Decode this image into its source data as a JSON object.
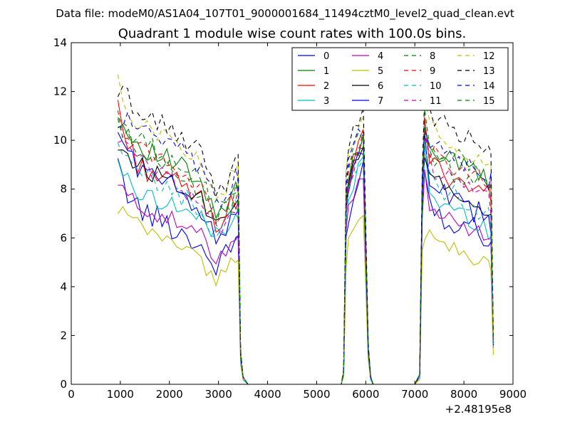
{
  "chart_data": {
    "type": "line",
    "suptitle": "Data file: modeM0/AS1A04_107T01_9000001684_11494cztM0_level2_quad_clean.evt",
    "title": "Quadrant 1 module wise count rates with 100.0s bins.",
    "xlabel": "",
    "ylabel": "",
    "x_offset_label": "+2.48195e8",
    "xlim": [
      0,
      9000
    ],
    "ylim": [
      0,
      14
    ],
    "xticks": [
      0,
      1000,
      2000,
      3000,
      4000,
      5000,
      6000,
      7000,
      8000,
      9000
    ],
    "yticks": [
      0,
      2,
      4,
      6,
      8,
      10,
      12,
      14
    ],
    "x": [
      950,
      1050,
      1150,
      1250,
      1350,
      1450,
      1550,
      1650,
      1750,
      1850,
      1950,
      2050,
      2150,
      2250,
      2350,
      2450,
      2550,
      2650,
      2750,
      2850,
      2950,
      3050,
      3150,
      3250,
      3350,
      3400,
      3450,
      3500,
      3600,
      3700,
      5500,
      5550,
      5600,
      5650,
      5750,
      5850,
      5950,
      6050,
      6100,
      6150,
      7000,
      7100,
      7150,
      7200,
      7300,
      7400,
      7500,
      7600,
      7700,
      7800,
      7900,
      8000,
      8100,
      8200,
      8300,
      8400,
      8500,
      8550,
      8600
    ],
    "series": [
      {
        "name": "0",
        "style": "solid",
        "color": "#0000ff",
        "base": [
          8.8,
          8.3,
          7.9,
          7.6,
          7.3,
          7.1,
          7.0,
          6.9,
          6.8,
          6.7,
          6.6,
          6.5,
          6.3,
          6.2,
          6.1,
          6.0,
          5.8,
          5.6,
          5.3,
          5.0,
          4.9,
          5.0,
          5.3,
          5.6,
          6.0,
          6.0,
          1.0,
          0.2,
          0,
          0,
          0,
          0.4,
          5.8,
          6.5,
          7.6,
          8.3,
          8.8,
          1.2,
          0.2,
          0,
          0,
          0.3,
          6.8,
          9.2,
          7.6,
          7.2,
          7.0,
          6.9,
          6.8,
          6.7,
          6.6,
          6.6,
          6.5,
          6.4,
          6.3,
          6.2,
          6.0,
          5.9,
          1.5
        ],
        "wiggle": 0.55
      },
      {
        "name": "1",
        "style": "solid",
        "color": "#008000",
        "base": [
          10.9,
          10.6,
          10.3,
          10.1,
          9.9,
          9.8,
          9.6,
          9.5,
          9.4,
          9.3,
          9.2,
          9.1,
          9.0,
          8.9,
          8.7,
          8.5,
          8.3,
          8.0,
          7.7,
          7.3,
          7.0,
          7.0,
          7.2,
          7.5,
          7.9,
          8.0,
          1.3,
          0.3,
          0,
          0,
          0,
          0.5,
          7.6,
          8.6,
          9.3,
          9.8,
          10.2,
          1.5,
          0.3,
          0,
          0,
          0.4,
          7.9,
          10.8,
          9.9,
          9.6,
          9.4,
          9.3,
          9.2,
          9.1,
          9.0,
          8.9,
          8.8,
          8.7,
          8.6,
          8.5,
          8.3,
          8.2,
          1.8
        ],
        "wiggle": 0.45
      },
      {
        "name": "2",
        "style": "solid",
        "color": "#ff0000",
        "base": [
          11.6,
          10.5,
          9.8,
          9.4,
          9.1,
          8.9,
          8.8,
          8.7,
          8.6,
          8.5,
          8.4,
          8.3,
          8.2,
          8.1,
          8.0,
          7.9,
          7.7,
          7.5,
          7.2,
          6.9,
          6.7,
          6.8,
          7.0,
          7.3,
          7.6,
          7.7,
          1.2,
          0.3,
          0,
          0,
          0,
          0.5,
          7.4,
          8.4,
          9.0,
          9.6,
          10.0,
          1.4,
          0.3,
          0,
          0,
          0.4,
          7.6,
          10.5,
          9.2,
          9.0,
          8.8,
          8.7,
          8.6,
          8.5,
          8.4,
          8.3,
          8.2,
          8.1,
          8.0,
          7.9,
          7.7,
          7.6,
          1.7
        ],
        "wiggle": 0.5
      },
      {
        "name": "3",
        "style": "solid",
        "color": "#00bfbf",
        "base": [
          9.3,
          8.7,
          8.3,
          8.0,
          7.9,
          7.8,
          7.7,
          7.7,
          7.6,
          7.5,
          7.5,
          7.4,
          7.3,
          7.2,
          7.1,
          7.0,
          6.9,
          6.7,
          6.5,
          6.3,
          6.2,
          6.3,
          6.5,
          6.7,
          7.0,
          7.0,
          1.1,
          0.2,
          0,
          0,
          0,
          0.4,
          6.8,
          7.6,
          8.2,
          8.8,
          9.1,
          1.3,
          0.2,
          0,
          0,
          0.3,
          7.2,
          9.8,
          7.8,
          7.6,
          7.4,
          7.3,
          7.2,
          7.1,
          7.0,
          6.9,
          6.8,
          6.7,
          6.6,
          6.5,
          6.3,
          6.2,
          1.6
        ],
        "wiggle": 0.4
      },
      {
        "name": "4",
        "style": "solid",
        "color": "#bf00bf",
        "base": [
          8.2,
          7.9,
          7.7,
          7.5,
          7.4,
          7.3,
          7.2,
          7.1,
          7.0,
          6.9,
          6.8,
          6.7,
          6.6,
          6.5,
          6.4,
          6.3,
          6.2,
          6.0,
          5.8,
          5.5,
          5.3,
          5.4,
          5.6,
          5.9,
          6.2,
          6.3,
          1.0,
          0.2,
          0,
          0,
          0,
          0.4,
          6.2,
          7.0,
          7.8,
          8.4,
          8.7,
          1.2,
          0.2,
          0,
          0,
          0.3,
          6.9,
          8.6,
          7.4,
          7.2,
          7.0,
          6.9,
          6.8,
          6.7,
          6.6,
          6.5,
          6.4,
          6.3,
          6.2,
          6.1,
          5.9,
          5.8,
          1.5
        ],
        "wiggle": 0.4
      },
      {
        "name": "5",
        "style": "solid",
        "color": "#bfbf00",
        "base": [
          6.9,
          7.1,
          6.9,
          6.7,
          6.5,
          6.4,
          6.3,
          6.2,
          6.1,
          6.0,
          5.9,
          5.9,
          5.8,
          5.7,
          5.6,
          5.5,
          5.3,
          5.0,
          4.7,
          4.4,
          4.3,
          4.4,
          4.6,
          4.9,
          5.3,
          5.4,
          0.8,
          0.2,
          0,
          0,
          0,
          0.3,
          4.9,
          5.9,
          6.2,
          6.6,
          6.9,
          1.0,
          0.2,
          0,
          0,
          0.2,
          5.8,
          6.2,
          6.1,
          5.9,
          5.8,
          5.7,
          5.6,
          5.6,
          5.5,
          5.4,
          5.3,
          5.2,
          5.1,
          5.0,
          4.8,
          4.7,
          1.2
        ],
        "wiggle": 0.35
      },
      {
        "name": "6",
        "style": "solid",
        "color": "#000000",
        "base": [
          9.9,
          9.6,
          9.4,
          9.2,
          9.0,
          8.9,
          8.8,
          8.7,
          8.6,
          8.5,
          8.5,
          8.4,
          8.3,
          8.2,
          8.1,
          8.0,
          7.8,
          7.6,
          7.3,
          7.0,
          6.8,
          6.9,
          7.1,
          7.4,
          7.7,
          7.8,
          1.2,
          0.3,
          0,
          0,
          0,
          0.5,
          7.4,
          8.2,
          8.8,
          9.1,
          9.3,
          1.4,
          0.3,
          0,
          0,
          0.4,
          7.6,
          9.6,
          8.6,
          8.4,
          8.2,
          8.1,
          8.0,
          7.9,
          7.8,
          7.7,
          7.6,
          7.5,
          7.4,
          7.3,
          7.1,
          7.0,
          1.7
        ],
        "wiggle": 0.45
      },
      {
        "name": "7",
        "style": "solid",
        "color": "#0000ff",
        "base": [
          10.5,
          9.9,
          9.5,
          9.2,
          9.0,
          8.8,
          8.6,
          8.5,
          8.4,
          8.3,
          8.2,
          8.1,
          8.0,
          7.9,
          7.8,
          7.6,
          7.4,
          7.1,
          6.7,
          6.3,
          6.0,
          6.1,
          6.4,
          6.8,
          7.2,
          7.3,
          1.1,
          0.3,
          0,
          0,
          0,
          0.5,
          7.0,
          7.9,
          8.6,
          9.1,
          9.4,
          1.3,
          0.3,
          0,
          0,
          0.4,
          7.3,
          9.9,
          8.2,
          8.0,
          7.8,
          7.7,
          7.6,
          7.5,
          7.4,
          7.3,
          7.2,
          7.1,
          7.0,
          6.9,
          6.7,
          6.6,
          1.6
        ],
        "wiggle": 0.5
      },
      {
        "name": "8",
        "style": "dashed",
        "color": "#008000",
        "base": [
          10.9,
          10.7,
          10.5,
          10.3,
          10.1,
          9.9,
          9.8,
          9.7,
          9.6,
          9.5,
          9.4,
          9.3,
          9.2,
          9.1,
          8.9,
          8.7,
          8.5,
          8.2,
          7.9,
          7.5,
          7.2,
          7.3,
          7.5,
          7.8,
          8.2,
          8.3,
          1.3,
          0.3,
          0,
          0,
          0,
          0.5,
          7.9,
          8.8,
          9.5,
          10.0,
          10.4,
          1.5,
          0.3,
          0,
          0,
          0.4,
          8.1,
          10.9,
          10.0,
          9.8,
          9.6,
          9.5,
          9.4,
          9.3,
          9.2,
          9.1,
          9.0,
          8.9,
          8.8,
          8.7,
          8.5,
          8.4,
          1.8
        ],
        "wiggle": 0.45
      },
      {
        "name": "9",
        "style": "dashed",
        "color": "#ff0000",
        "base": [
          10.8,
          10.5,
          10.2,
          10.0,
          9.8,
          9.6,
          9.5,
          9.4,
          9.3,
          9.2,
          9.1,
          9.0,
          8.9,
          8.8,
          8.6,
          8.4,
          8.2,
          7.9,
          7.6,
          7.2,
          6.9,
          7.0,
          7.2,
          7.5,
          7.9,
          8.0,
          1.3,
          0.3,
          0,
          0,
          0,
          0.5,
          7.7,
          8.7,
          9.4,
          9.9,
          10.3,
          1.5,
          0.3,
          0,
          0,
          0.4,
          7.9,
          10.7,
          9.6,
          9.4,
          9.2,
          9.1,
          9.0,
          8.9,
          8.8,
          8.7,
          8.6,
          8.5,
          8.4,
          8.3,
          8.1,
          8.0,
          1.8
        ],
        "wiggle": 0.45
      },
      {
        "name": "10",
        "style": "dashed",
        "color": "#00bfbf",
        "base": [
          9.6,
          9.3,
          9.0,
          8.8,
          8.6,
          8.5,
          8.4,
          8.3,
          8.2,
          8.1,
          8.0,
          7.9,
          7.8,
          7.7,
          7.6,
          7.4,
          7.2,
          7.0,
          6.7,
          6.4,
          6.2,
          6.3,
          6.5,
          6.8,
          7.1,
          7.2,
          1.1,
          0.2,
          0,
          0,
          0,
          0.4,
          7.0,
          7.9,
          8.5,
          9.0,
          9.3,
          1.3,
          0.2,
          0,
          0,
          0.3,
          7.3,
          9.5,
          8.4,
          8.2,
          8.0,
          7.9,
          7.8,
          7.7,
          7.6,
          7.5,
          7.4,
          7.3,
          7.2,
          7.1,
          6.9,
          6.8,
          1.6
        ],
        "wiggle": 0.45
      },
      {
        "name": "11",
        "style": "dashed",
        "color": "#bf00bf",
        "base": [
          10.2,
          9.9,
          9.6,
          9.4,
          9.2,
          9.0,
          8.9,
          8.8,
          8.7,
          8.6,
          8.5,
          8.4,
          8.3,
          8.2,
          8.0,
          7.8,
          7.6,
          7.3,
          7.0,
          6.6,
          6.4,
          6.5,
          6.7,
          7.0,
          7.4,
          7.5,
          1.2,
          0.3,
          0,
          0,
          0,
          0.5,
          7.3,
          8.2,
          8.9,
          9.4,
          9.8,
          1.4,
          0.3,
          0,
          0,
          0.4,
          7.6,
          10.2,
          9.0,
          8.8,
          8.6,
          8.5,
          8.4,
          8.3,
          8.2,
          8.1,
          8.0,
          7.9,
          7.8,
          7.7,
          7.5,
          7.4,
          1.7
        ],
        "wiggle": 0.45
      },
      {
        "name": "12",
        "style": "dashed",
        "color": "#bfbf00",
        "base": [
          12.3,
          11.7,
          11.3,
          11.0,
          10.8,
          10.6,
          10.5,
          10.4,
          10.3,
          10.2,
          10.1,
          10.0,
          9.9,
          9.8,
          9.6,
          9.4,
          9.2,
          8.9,
          8.5,
          8.1,
          7.8,
          7.9,
          8.1,
          8.4,
          8.8,
          8.9,
          1.4,
          0.3,
          0,
          0,
          0,
          0.5,
          8.5,
          9.5,
          10.1,
          10.6,
          10.9,
          1.6,
          0.3,
          0,
          0,
          0.4,
          8.6,
          11.3,
          10.5,
          10.3,
          10.1,
          10.0,
          9.9,
          9.8,
          9.7,
          9.6,
          9.5,
          9.4,
          9.3,
          9.2,
          9.0,
          8.9,
          1.9
        ],
        "wiggle": 0.4
      },
      {
        "name": "13",
        "style": "dashed",
        "color": "#000000",
        "base": [
          11.5,
          11.9,
          11.9,
          11.5,
          11.2,
          11.0,
          10.9,
          10.8,
          10.7,
          10.6,
          10.5,
          10.4,
          10.3,
          10.2,
          10.0,
          9.8,
          9.6,
          9.3,
          8.9,
          8.4,
          8.0,
          8.1,
          8.3,
          8.6,
          9.0,
          9.1,
          1.4,
          0.3,
          0,
          0,
          0,
          0.6,
          8.9,
          9.9,
          10.6,
          10.9,
          11.1,
          1.7,
          0.3,
          0,
          0,
          0.4,
          8.9,
          11.5,
          11.1,
          10.9,
          10.7,
          10.6,
          10.5,
          10.4,
          10.3,
          10.2,
          10.1,
          10.0,
          9.9,
          9.7,
          9.5,
          9.3,
          2.0
        ],
        "wiggle": 0.45
      },
      {
        "name": "14",
        "style": "dashed",
        "color": "#0000ff",
        "base": [
          10.6,
          10.7,
          11.0,
          10.8,
          10.6,
          10.4,
          10.3,
          10.2,
          10.0,
          9.9,
          9.8,
          9.7,
          9.6,
          9.5,
          9.3,
          9.1,
          8.9,
          8.6,
          8.2,
          7.8,
          7.5,
          7.6,
          7.8,
          8.1,
          8.5,
          8.6,
          1.3,
          0.3,
          0,
          0,
          0,
          0.5,
          8.2,
          9.2,
          9.8,
          10.2,
          10.5,
          1.5,
          0.3,
          0,
          0,
          0.4,
          8.3,
          10.6,
          9.9,
          9.7,
          9.5,
          9.4,
          9.3,
          9.2,
          9.1,
          9.0,
          8.9,
          8.8,
          8.7,
          8.6,
          8.4,
          8.3,
          1.8
        ],
        "wiggle": 0.45
      },
      {
        "name": "15",
        "style": "dashed",
        "color": "#008000",
        "base": [
          10.5,
          10.2,
          10.0,
          9.8,
          9.6,
          9.4,
          9.3,
          9.2,
          9.1,
          9.0,
          8.9,
          8.8,
          8.7,
          8.6,
          8.4,
          8.2,
          8.0,
          7.7,
          7.4,
          7.0,
          6.8,
          6.9,
          7.1,
          7.4,
          7.8,
          7.9,
          1.2,
          0.3,
          0,
          0,
          0,
          0.5,
          7.5,
          8.5,
          9.2,
          9.7,
          10.0,
          1.4,
          0.3,
          0,
          0,
          0.4,
          7.8,
          10.5,
          9.4,
          9.2,
          9.0,
          8.9,
          8.8,
          8.7,
          8.6,
          8.5,
          8.4,
          8.3,
          8.2,
          8.1,
          7.9,
          7.8,
          1.7
        ],
        "wiggle": 0.45
      }
    ],
    "legend": {
      "placement": "top-right",
      "columns": 4
    }
  }
}
